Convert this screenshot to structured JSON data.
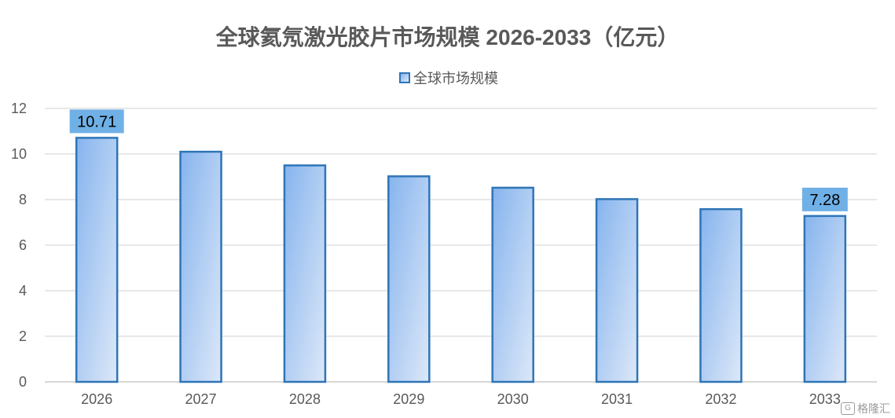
{
  "chart_data": {
    "type": "bar",
    "title": "全球氦氖激光胶片市场规模 2026-2033（亿元）",
    "categories": [
      "2026",
      "2027",
      "2028",
      "2029",
      "2030",
      "2031",
      "2032",
      "2033"
    ],
    "series": [
      {
        "name": "全球市场规模",
        "values": [
          10.71,
          10.1,
          9.5,
          9.02,
          8.52,
          8.02,
          7.58,
          7.28
        ]
      }
    ],
    "data_labels": [
      {
        "index": 0,
        "text": "10.71"
      },
      {
        "index": 7,
        "text": "7.28"
      }
    ],
    "ylim": [
      0,
      12
    ],
    "yticks": [
      0,
      2,
      4,
      6,
      8,
      10,
      12
    ],
    "grid": true,
    "legend_position": "top-center",
    "colors": {
      "bar_border": "#2e75b6",
      "bar_fill_top": "#86b4ee",
      "bar_fill_bottom": "#dde8f8",
      "label_box": "#6fb0e6",
      "gridline": "#d9d9d9",
      "text": "#595959"
    }
  },
  "watermark": {
    "logo": "G",
    "text": "格隆汇"
  }
}
